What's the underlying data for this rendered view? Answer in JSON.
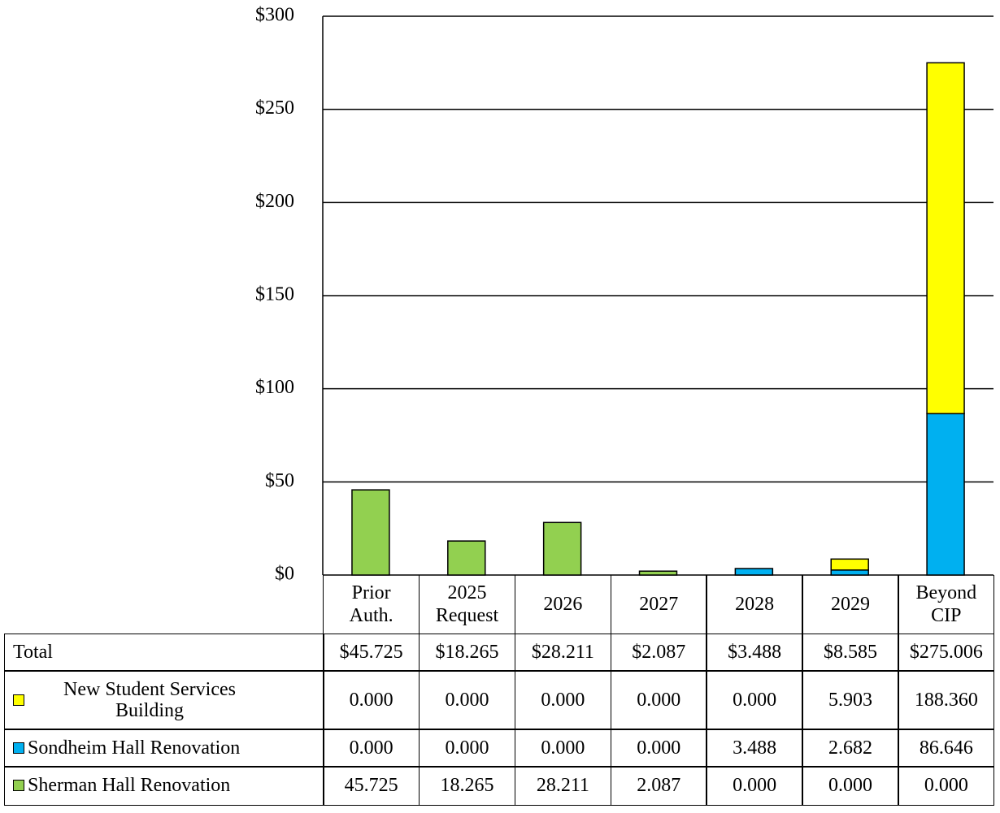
{
  "chart_data": {
    "type": "stacked_bar",
    "categories": [
      "Prior Auth.",
      "2025 Request",
      "2026",
      "2027",
      "2028",
      "2029",
      "Beyond CIP"
    ],
    "series": [
      {
        "name": "Sherman Hall Renovation",
        "color": "#92d050",
        "values": [
          45.725,
          18.265,
          28.211,
          2.087,
          0,
          0,
          0
        ],
        "value_labels": [
          "45.725",
          "18.265",
          "28.211",
          "2.087",
          "0.000",
          "0.000",
          "0.000"
        ]
      },
      {
        "name": "Sondheim Hall Renovation",
        "color": "#00b0f0",
        "values": [
          0,
          0,
          0,
          0,
          3.488,
          2.682,
          86.646
        ],
        "value_labels": [
          "0.000",
          "0.000",
          "0.000",
          "0.000",
          "3.488",
          "2.682",
          "86.646"
        ]
      },
      {
        "name": "New Student Services Building",
        "color": "#ffff00",
        "values": [
          0,
          0,
          0,
          0,
          0,
          5.903,
          188.36
        ],
        "value_labels": [
          "0.000",
          "0.000",
          "0.000",
          "0.000",
          "0.000",
          "5.903",
          "188.360"
        ]
      }
    ],
    "totals": {
      "label": "Total",
      "values": [
        45.725,
        18.265,
        28.211,
        2.087,
        3.488,
        8.585,
        275.006
      ],
      "value_labels": [
        "$45.725",
        "$18.265",
        "$28.211",
        "$2.087",
        "$3.488",
        "$8.585",
        "$275.006"
      ]
    },
    "ylim": [
      0,
      300
    ],
    "yticks": [
      {
        "value": 0,
        "label": "$0"
      },
      {
        "value": 50,
        "label": "$50"
      },
      {
        "value": 100,
        "label": "$100"
      },
      {
        "value": 150,
        "label": "$150"
      },
      {
        "value": 200,
        "label": "$200"
      },
      {
        "value": 250,
        "label": "$250"
      },
      {
        "value": 300,
        "label": "$300"
      }
    ],
    "grid": true
  }
}
